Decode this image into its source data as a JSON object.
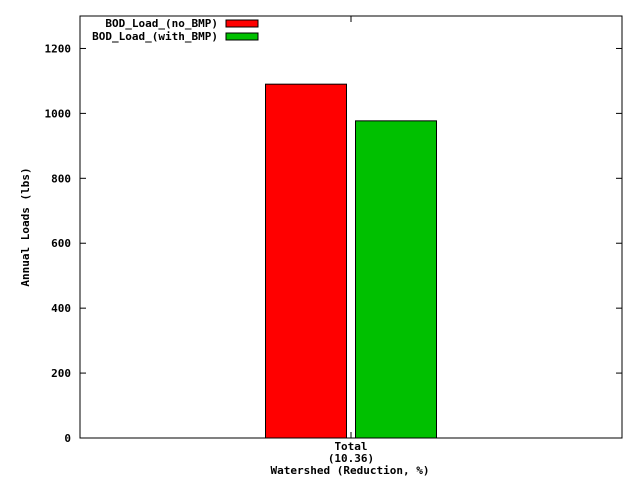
{
  "chart_data": {
    "type": "bar",
    "title": "",
    "xlabel": "Watershed (Reduction, %)",
    "ylabel": "Annual Loads (lbs)",
    "categories": [
      "Total\n(10.36)"
    ],
    "category_lines": [
      [
        "Total",
        "(10.36)"
      ]
    ],
    "series": [
      {
        "name": "BOD_Load_(no_BMP)",
        "values": [
          1090
        ],
        "color": "#ff0000"
      },
      {
        "name": "BOD_Load_(with_BMP)",
        "values": [
          977
        ],
        "color": "#00c000"
      }
    ],
    "ylim": [
      0,
      1300
    ],
    "yticks": [
      0,
      200,
      400,
      600,
      800,
      1000,
      1200
    ],
    "grid": false,
    "legend": "top-left"
  }
}
